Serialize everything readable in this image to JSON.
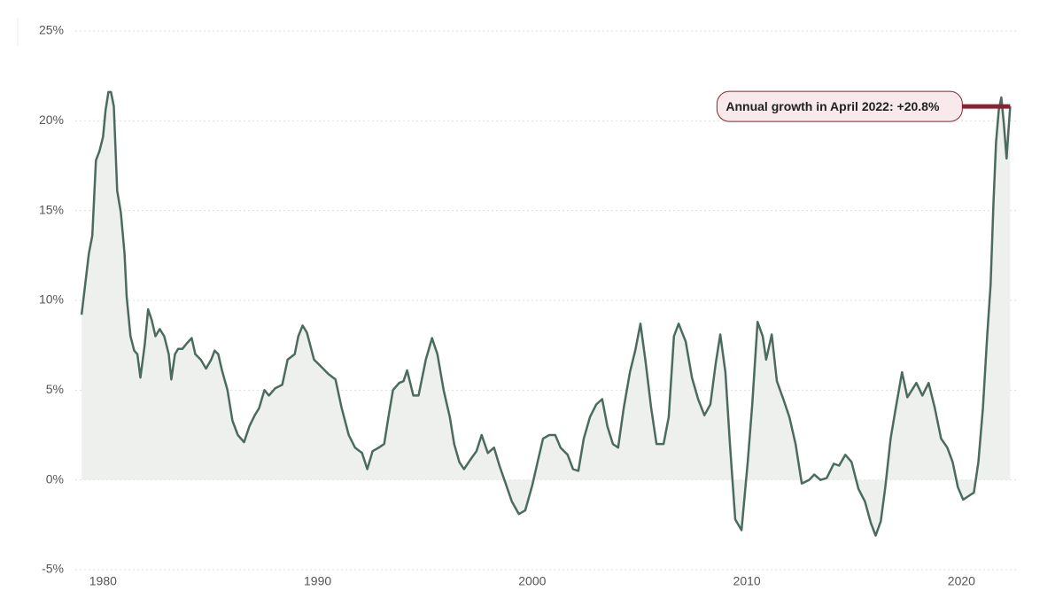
{
  "chart_data": {
    "type": "line",
    "annotation": {
      "text": "Annual growth in April 2022: +20.8%",
      "color": "#8b2232"
    },
    "series": [
      {
        "color": "#4a6b5e",
        "fill": "#eef0ee",
        "x": [
          1979.0,
          1979.17,
          1979.34,
          1979.5,
          1979.67,
          1979.83,
          1980.0,
          1980.12,
          1980.25,
          1980.37,
          1980.5,
          1980.66,
          1980.83,
          1981.0,
          1981.1,
          1981.28,
          1981.45,
          1981.6,
          1981.74,
          1981.94,
          1982.1,
          1982.27,
          1982.44,
          1982.64,
          1982.85,
          1983.06,
          1983.18,
          1983.35,
          1983.5,
          1983.7,
          1983.9,
          1984.13,
          1984.3,
          1984.55,
          1984.8,
          1985.04,
          1985.2,
          1985.37,
          1985.54,
          1985.8,
          1986.03,
          1986.28,
          1986.57,
          1986.82,
          1987.07,
          1987.27,
          1987.52,
          1987.73,
          1988.02,
          1988.35,
          1988.6,
          1988.93,
          1989.1,
          1989.3,
          1989.5,
          1989.83,
          1990.17,
          1990.5,
          1990.83,
          1991.12,
          1991.45,
          1991.74,
          1992.07,
          1992.31,
          1992.56,
          1992.85,
          1993.1,
          1993.3,
          1993.51,
          1993.8,
          1994.0,
          1994.17,
          1994.46,
          1994.7,
          1995.04,
          1995.33,
          1995.58,
          1995.87,
          1996.16,
          1996.36,
          1996.6,
          1996.82,
          1997.1,
          1997.4,
          1997.64,
          1997.93,
          1998.22,
          1998.47,
          1998.76,
          1999.05,
          1999.38,
          1999.67,
          2000.0,
          2000.25,
          2000.5,
          2000.79,
          2001.07,
          2001.32,
          2001.65,
          2001.9,
          2002.15,
          2002.4,
          2002.69,
          2002.98,
          2003.26,
          2003.5,
          2003.76,
          2004.0,
          2004.26,
          2004.55,
          2004.8,
          2005.04,
          2005.29,
          2005.54,
          2005.79,
          2006.12,
          2006.36,
          2006.6,
          2006.82,
          2007.15,
          2007.44,
          2007.73,
          2008.02,
          2008.3,
          2008.55,
          2008.76,
          2009.0,
          2009.21,
          2009.46,
          2009.75,
          2010.04,
          2010.25,
          2010.5,
          2010.74,
          2010.9,
          2011.16,
          2011.4,
          2011.7,
          2011.98,
          2012.27,
          2012.56,
          2012.9,
          2013.14,
          2013.43,
          2013.72,
          2014.05,
          2014.3,
          2014.59,
          2014.88,
          2015.2,
          2015.5,
          2015.78,
          2016.0,
          2016.24,
          2016.45,
          2016.7,
          2016.94,
          2017.23,
          2017.48,
          2017.69,
          2017.9,
          2018.18,
          2018.47,
          2018.76,
          2019.05,
          2019.34,
          2019.59,
          2019.83,
          2020.08,
          2020.33,
          2020.58,
          2020.79,
          2021.0,
          2021.2,
          2021.36,
          2021.49,
          2021.61,
          2021.74,
          2021.86,
          2021.98,
          2022.1,
          2022.18,
          2022.27
        ],
        "values": [
          9.2,
          10.9,
          12.6,
          13.6,
          17.8,
          18.3,
          19.1,
          20.6,
          21.6,
          21.6,
          20.8,
          16.1,
          14.9,
          12.6,
          10.2,
          8.0,
          7.2,
          7.0,
          5.7,
          7.5,
          9.5,
          8.9,
          8.0,
          8.4,
          8.0,
          7.0,
          5.6,
          7.0,
          7.3,
          7.3,
          7.6,
          7.9,
          7.0,
          6.7,
          6.2,
          6.7,
          7.2,
          7.0,
          6.1,
          5.0,
          3.3,
          2.5,
          2.1,
          3.0,
          3.6,
          4.0,
          5.0,
          4.7,
          5.1,
          5.3,
          6.7,
          7.0,
          8.0,
          8.6,
          8.2,
          6.7,
          6.3,
          5.9,
          5.6,
          4.0,
          2.5,
          1.8,
          1.5,
          0.6,
          1.6,
          1.8,
          2.0,
          3.5,
          5.0,
          5.4,
          5.5,
          6.1,
          4.7,
          4.7,
          6.7,
          7.9,
          7.0,
          5.0,
          3.5,
          2.0,
          1.0,
          0.6,
          1.1,
          1.6,
          2.5,
          1.5,
          1.8,
          0.8,
          -0.2,
          -1.2,
          -1.9,
          -1.7,
          -0.3,
          1.0,
          2.3,
          2.5,
          2.5,
          1.8,
          1.4,
          0.6,
          0.5,
          2.3,
          3.5,
          4.2,
          4.5,
          3.0,
          2.0,
          1.8,
          4.0,
          6.0,
          7.2,
          8.7,
          6.5,
          4.0,
          2.0,
          2.0,
          3.5,
          8.0,
          8.7,
          7.7,
          5.7,
          4.5,
          3.6,
          4.2,
          6.5,
          8.1,
          6.0,
          2.0,
          -2.2,
          -2.8,
          1.0,
          4.2,
          8.8,
          8.0,
          6.7,
          8.1,
          5.5,
          4.5,
          3.5,
          2.0,
          -0.2,
          0.0,
          0.3,
          0.0,
          0.1,
          0.9,
          0.8,
          1.4,
          1.0,
          -0.5,
          -1.2,
          -2.4,
          -3.1,
          -2.3,
          -0.4,
          2.3,
          4.0,
          6.0,
          4.6,
          5.0,
          5.4,
          4.7,
          5.4,
          4.0,
          2.3,
          1.8,
          1.0,
          -0.4,
          -1.1,
          -0.9,
          -0.7,
          1.0,
          4.0,
          8.0,
          10.9,
          15.4,
          18.8,
          20.6,
          21.3,
          19.8,
          17.9,
          19.3,
          20.8
        ]
      }
    ],
    "xlim": [
      1978.5,
      2022.75
    ],
    "xticks": [
      1980,
      1990,
      2000,
      2010,
      2020
    ],
    "ylim": [
      -5,
      25
    ],
    "yticks": [
      {
        "value": -5,
        "label": "-5%"
      },
      {
        "value": 0,
        "label": "0%"
      },
      {
        "value": 5,
        "label": "5%"
      },
      {
        "value": 10,
        "label": "10%"
      },
      {
        "value": 15,
        "label": "15%"
      },
      {
        "value": 20,
        "label": "20%"
      },
      {
        "value": 25,
        "label": "25%"
      }
    ],
    "grid": true
  }
}
